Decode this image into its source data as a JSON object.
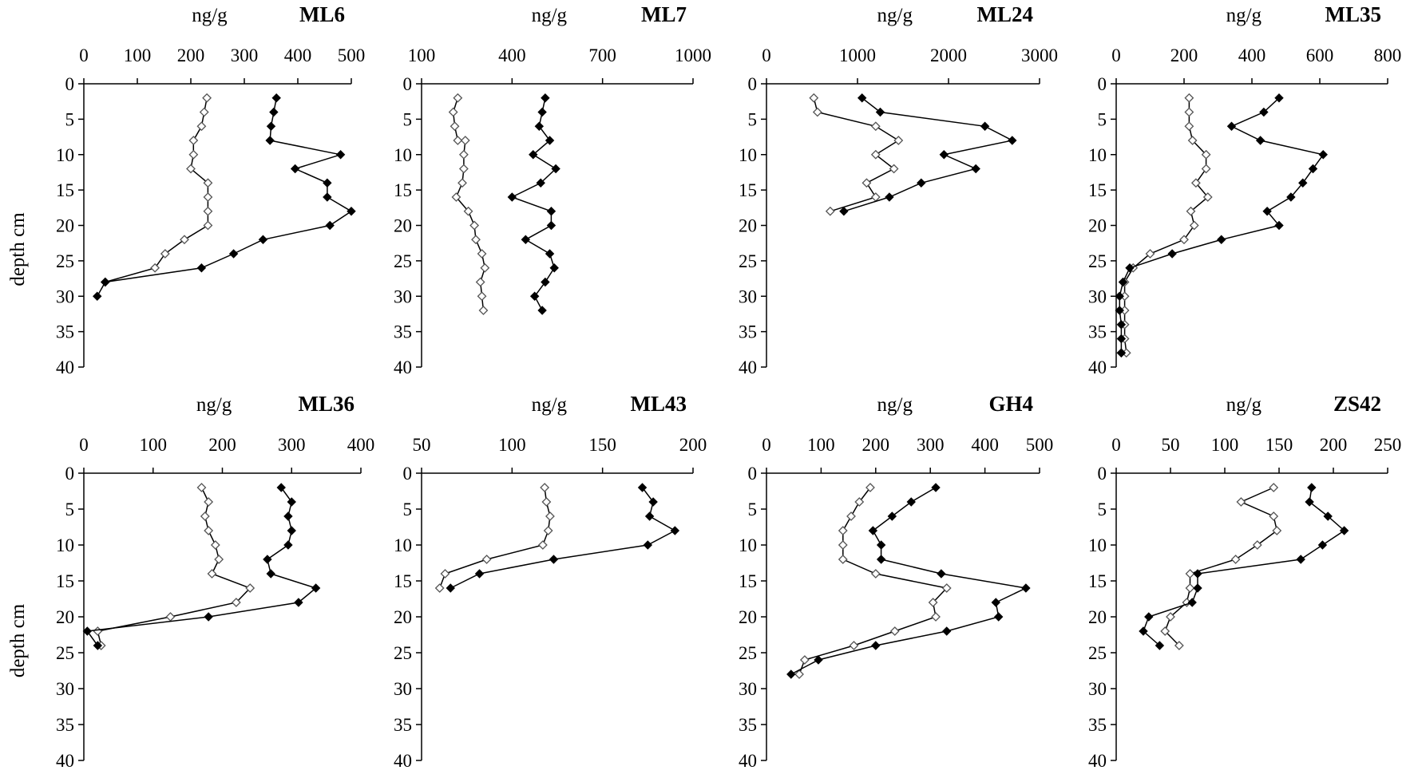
{
  "chart_data": [
    {
      "type": "line",
      "title": "ML6",
      "unit": "ng/g",
      "ylabel": "depth cm",
      "xlim": [
        0,
        500
      ],
      "xticks": [
        0,
        100,
        200,
        300,
        400,
        500
      ],
      "ylim": [
        0,
        40
      ],
      "yticks": [
        0,
        5,
        10,
        15,
        20,
        25,
        30,
        35,
        40
      ],
      "series": [
        {
          "marker": "filled-diamond",
          "color": "#000000",
          "x": [
            360,
            355,
            350,
            348,
            480,
            395,
            455,
            455,
            500,
            460,
            335,
            280,
            220,
            40,
            25
          ],
          "y": [
            2,
            4,
            6,
            8,
            10,
            12,
            14,
            16,
            18,
            20,
            22,
            24,
            26,
            28,
            30
          ]
        },
        {
          "marker": "open-diamond",
          "color": "#555555",
          "x": [
            230,
            225,
            220,
            205,
            205,
            200,
            232,
            232,
            232,
            232,
            188,
            152,
            133,
            40
          ],
          "y": [
            2,
            4,
            6,
            8,
            10,
            12,
            14,
            16,
            18,
            20,
            22,
            24,
            26,
            28
          ]
        }
      ]
    },
    {
      "type": "line",
      "title": "ML7",
      "unit": "ng/g",
      "ylabel": "",
      "xlim": [
        100,
        1000
      ],
      "xticks": [
        100,
        400,
        700,
        1000
      ],
      "ylim": [
        0,
        40
      ],
      "yticks": [
        0,
        5,
        10,
        15,
        20,
        25,
        30,
        35,
        40
      ],
      "series": [
        {
          "marker": "filled-diamond",
          "color": "#000000",
          "x": [
            510,
            500,
            490,
            525,
            470,
            545,
            495,
            400,
            530,
            530,
            445,
            525,
            540,
            510,
            475,
            500
          ],
          "y": [
            2,
            4,
            6,
            8,
            10,
            12,
            14,
            16,
            18,
            20,
            22,
            24,
            26,
            28,
            30,
            32
          ]
        },
        {
          "marker": "open-diamond",
          "color": "#555555",
          "x": [
            220,
            205,
            210,
            220,
            245,
            240,
            240,
            235,
            215,
            255,
            275,
            280,
            300,
            310,
            295,
            300,
            305
          ],
          "y": [
            2,
            4,
            6,
            8,
            8,
            10,
            12,
            14,
            16,
            18,
            20,
            22,
            24,
            26,
            28,
            30,
            32
          ]
        }
      ]
    },
    {
      "type": "line",
      "title": "ML24",
      "unit": "ng/g",
      "ylabel": "",
      "xlim": [
        0,
        3000
      ],
      "xticks": [
        0,
        1000,
        2000,
        3000
      ],
      "ylim": [
        0,
        40
      ],
      "yticks": [
        0,
        5,
        10,
        15,
        20,
        25,
        30,
        35,
        40
      ],
      "series": [
        {
          "marker": "filled-diamond",
          "color": "#000000",
          "x": [
            1050,
            1250,
            2400,
            2700,
            1950,
            2300,
            1700,
            1350,
            850
          ],
          "y": [
            2,
            4,
            6,
            8,
            10,
            12,
            14,
            16,
            18
          ]
        },
        {
          "marker": "open-diamond",
          "color": "#555555",
          "x": [
            520,
            560,
            1200,
            1450,
            1200,
            1400,
            1100,
            1200,
            700
          ],
          "y": [
            2,
            4,
            6,
            8,
            10,
            12,
            14,
            16,
            18
          ]
        }
      ]
    },
    {
      "type": "line",
      "title": "ML35",
      "unit": "ng/g",
      "ylabel": "",
      "xlim": [
        0,
        800
      ],
      "xticks": [
        0,
        200,
        400,
        600,
        800
      ],
      "ylim": [
        0,
        40
      ],
      "yticks": [
        0,
        5,
        10,
        15,
        20,
        25,
        30,
        35,
        40
      ],
      "series": [
        {
          "marker": "filled-diamond",
          "color": "#000000",
          "x": [
            480,
            435,
            340,
            425,
            610,
            580,
            550,
            515,
            445,
            480,
            310,
            165,
            40,
            20,
            10,
            10,
            15,
            15,
            15,
            15
          ],
          "y": [
            2,
            4,
            6,
            8,
            10,
            12,
            14,
            16,
            18,
            20,
            22,
            24,
            26,
            28,
            30,
            32,
            34,
            36,
            38,
            38
          ]
        },
        {
          "marker": "open-diamond",
          "color": "#555555",
          "x": [
            215,
            215,
            215,
            225,
            265,
            265,
            235,
            270,
            220,
            230,
            200,
            100,
            50,
            25,
            25,
            25,
            25,
            25,
            30
          ],
          "y": [
            2,
            4,
            6,
            8,
            10,
            12,
            14,
            16,
            18,
            20,
            22,
            24,
            26,
            28,
            30,
            32,
            34,
            36,
            38
          ]
        }
      ]
    },
    {
      "type": "line",
      "title": "ML36",
      "unit": "ng/g",
      "ylabel": "depth cm",
      "xlim": [
        0,
        400
      ],
      "xticks": [
        0,
        100,
        200,
        300,
        400
      ],
      "ylim": [
        0,
        40
      ],
      "yticks": [
        0,
        5,
        10,
        15,
        20,
        25,
        30,
        35,
        40
      ],
      "series": [
        {
          "marker": "filled-diamond",
          "color": "#000000",
          "x": [
            285,
            300,
            295,
            300,
            295,
            265,
            270,
            335,
            310,
            180,
            5,
            20
          ],
          "y": [
            2,
            4,
            6,
            8,
            10,
            12,
            14,
            16,
            18,
            20,
            22,
            24
          ]
        },
        {
          "marker": "open-diamond",
          "color": "#555555",
          "x": [
            170,
            180,
            175,
            180,
            190,
            195,
            185,
            240,
            220,
            125,
            20,
            25
          ],
          "y": [
            2,
            4,
            6,
            8,
            10,
            12,
            14,
            16,
            18,
            20,
            22,
            24
          ]
        }
      ]
    },
    {
      "type": "line",
      "title": "ML43",
      "unit": "ng/g",
      "ylabel": "",
      "xlim": [
        50,
        200
      ],
      "xticks": [
        50,
        100,
        150,
        200
      ],
      "ylim": [
        0,
        40
      ],
      "yticks": [
        0,
        5,
        10,
        15,
        20,
        25,
        30,
        35,
        40
      ],
      "series": [
        {
          "marker": "filled-diamond",
          "color": "#000000",
          "x": [
            172,
            178,
            176,
            190,
            175,
            123,
            82,
            66
          ],
          "y": [
            2,
            4,
            6,
            8,
            10,
            12,
            14,
            16
          ]
        },
        {
          "marker": "open-diamond",
          "color": "#555555",
          "x": [
            118,
            119,
            121,
            120,
            117,
            86,
            63,
            60
          ],
          "y": [
            2,
            4,
            6,
            8,
            10,
            12,
            14,
            16
          ]
        }
      ]
    },
    {
      "type": "line",
      "title": "GH4",
      "unit": "ng/g",
      "ylabel": "",
      "xlim": [
        0,
        500
      ],
      "xticks": [
        0,
        100,
        200,
        300,
        400,
        500
      ],
      "ylim": [
        0,
        40
      ],
      "yticks": [
        0,
        5,
        10,
        15,
        20,
        25,
        30,
        35,
        40
      ],
      "series": [
        {
          "marker": "filled-diamond",
          "color": "#000000",
          "x": [
            310,
            265,
            230,
            195,
            210,
            210,
            320,
            475,
            420,
            425,
            330,
            200,
            95,
            45
          ],
          "y": [
            2,
            4,
            6,
            8,
            10,
            12,
            14,
            16,
            18,
            20,
            22,
            24,
            26,
            28
          ]
        },
        {
          "marker": "open-diamond",
          "color": "#555555",
          "x": [
            190,
            170,
            155,
            140,
            140,
            140,
            200,
            330,
            305,
            310,
            235,
            160,
            70,
            60
          ],
          "y": [
            2,
            4,
            6,
            8,
            10,
            12,
            14,
            16,
            18,
            20,
            22,
            24,
            26,
            28
          ]
        }
      ]
    },
    {
      "type": "line",
      "title": "ZS42",
      "unit": "ng/g",
      "ylabel": "",
      "xlim": [
        0,
        250
      ],
      "xticks": [
        0,
        50,
        100,
        150,
        200,
        250
      ],
      "ylim": [
        0,
        40
      ],
      "yticks": [
        0,
        5,
        10,
        15,
        20,
        25,
        30,
        35,
        40
      ],
      "series": [
        {
          "marker": "filled-diamond",
          "color": "#000000",
          "x": [
            180,
            178,
            195,
            210,
            190,
            170,
            75,
            75,
            70,
            30,
            25,
            40
          ],
          "y": [
            2,
            4,
            6,
            8,
            10,
            12,
            14,
            16,
            18,
            20,
            22,
            24
          ]
        },
        {
          "marker": "open-diamond",
          "color": "#555555",
          "x": [
            145,
            115,
            145,
            148,
            130,
            110,
            68,
            68,
            65,
            50,
            45,
            58
          ],
          "y": [
            2,
            4,
            6,
            8,
            10,
            12,
            14,
            16,
            18,
            20,
            22,
            24
          ]
        }
      ]
    }
  ]
}
